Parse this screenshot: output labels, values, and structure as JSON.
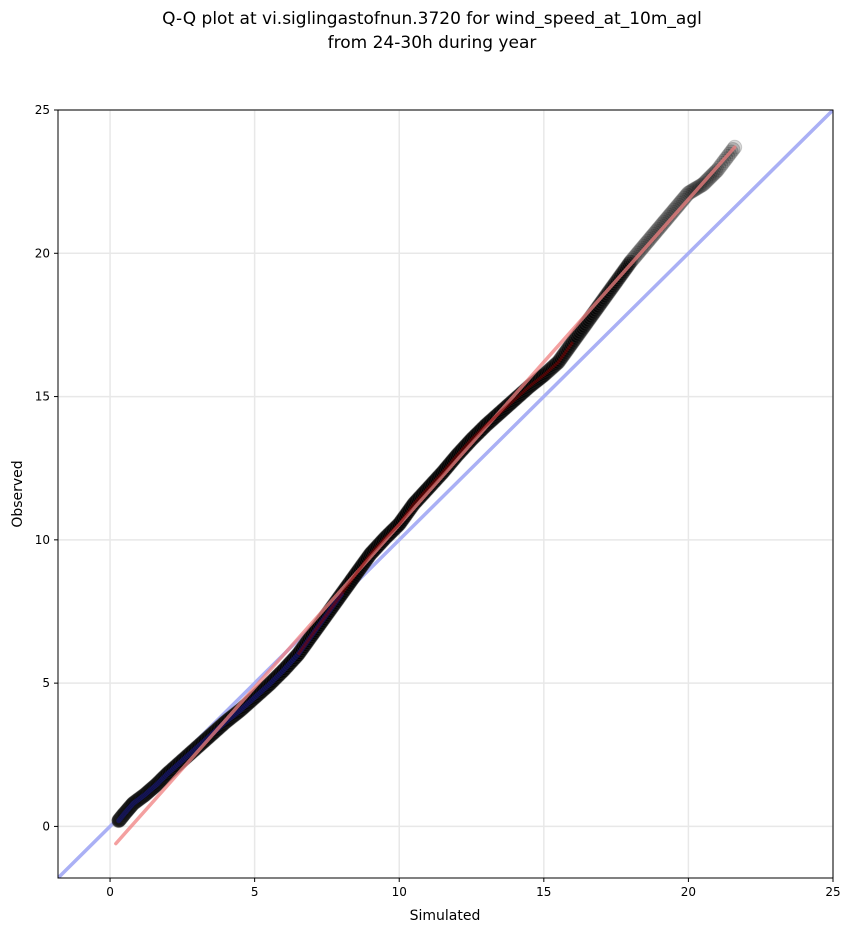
{
  "chart_data": {
    "type": "scatter",
    "title_lines": [
      "Q-Q plot at vi.siglingastofnun.3720 for wind_speed_at_10m_agl",
      "from 24-30h during year"
    ],
    "xlabel": "Simulated",
    "ylabel": "Observed",
    "xlim": [
      -1.8,
      25
    ],
    "ylim": [
      -1.8,
      25
    ],
    "xticks": [
      0,
      5,
      10,
      15,
      20,
      25
    ],
    "yticks": [
      0,
      5,
      10,
      15,
      20,
      25
    ],
    "grid": true,
    "series": [
      {
        "kind": "quantiles",
        "color": "#000000",
        "points": [
          [
            0.3,
            0.2
          ],
          [
            0.5,
            0.45
          ],
          [
            0.8,
            0.8
          ],
          [
            1.2,
            1.1
          ],
          [
            1.6,
            1.45
          ],
          [
            2.0,
            1.85
          ],
          [
            2.5,
            2.3
          ],
          [
            3.0,
            2.75
          ],
          [
            3.5,
            3.2
          ],
          [
            4.0,
            3.65
          ],
          [
            4.5,
            4.05
          ],
          [
            5.0,
            4.5
          ],
          [
            5.5,
            4.95
          ],
          [
            6.0,
            5.45
          ],
          [
            6.5,
            6.0
          ],
          [
            7.0,
            6.7
          ],
          [
            7.5,
            7.4
          ],
          [
            8.0,
            8.1
          ],
          [
            8.5,
            8.8
          ],
          [
            9.0,
            9.5
          ],
          [
            9.5,
            10.05
          ],
          [
            10.0,
            10.55
          ],
          [
            10.5,
            11.25
          ],
          [
            11.0,
            11.8
          ],
          [
            11.5,
            12.35
          ],
          [
            12.0,
            12.95
          ],
          [
            12.5,
            13.5
          ],
          [
            13.0,
            14.0
          ],
          [
            13.5,
            14.45
          ],
          [
            14.0,
            14.9
          ],
          [
            14.5,
            15.35
          ],
          [
            15.0,
            15.75
          ],
          [
            15.5,
            16.2
          ],
          [
            16.0,
            16.9
          ],
          [
            16.5,
            17.6
          ],
          [
            17.0,
            18.3
          ],
          [
            17.5,
            19.0
          ],
          [
            18.0,
            19.7
          ],
          [
            18.5,
            20.3
          ],
          [
            19.0,
            20.9
          ],
          [
            19.5,
            21.5
          ],
          [
            20.0,
            22.1
          ],
          [
            20.5,
            22.4
          ],
          [
            21.0,
            22.9
          ],
          [
            21.6,
            23.7
          ]
        ]
      },
      {
        "kind": "identity",
        "color": "#aab0f5",
        "from": -1.8,
        "to": 25
      },
      {
        "kind": "fit",
        "color": "#f08080",
        "points": [
          [
            0.2,
            -0.6
          ],
          [
            21.6,
            23.7
          ]
        ]
      }
    ]
  }
}
